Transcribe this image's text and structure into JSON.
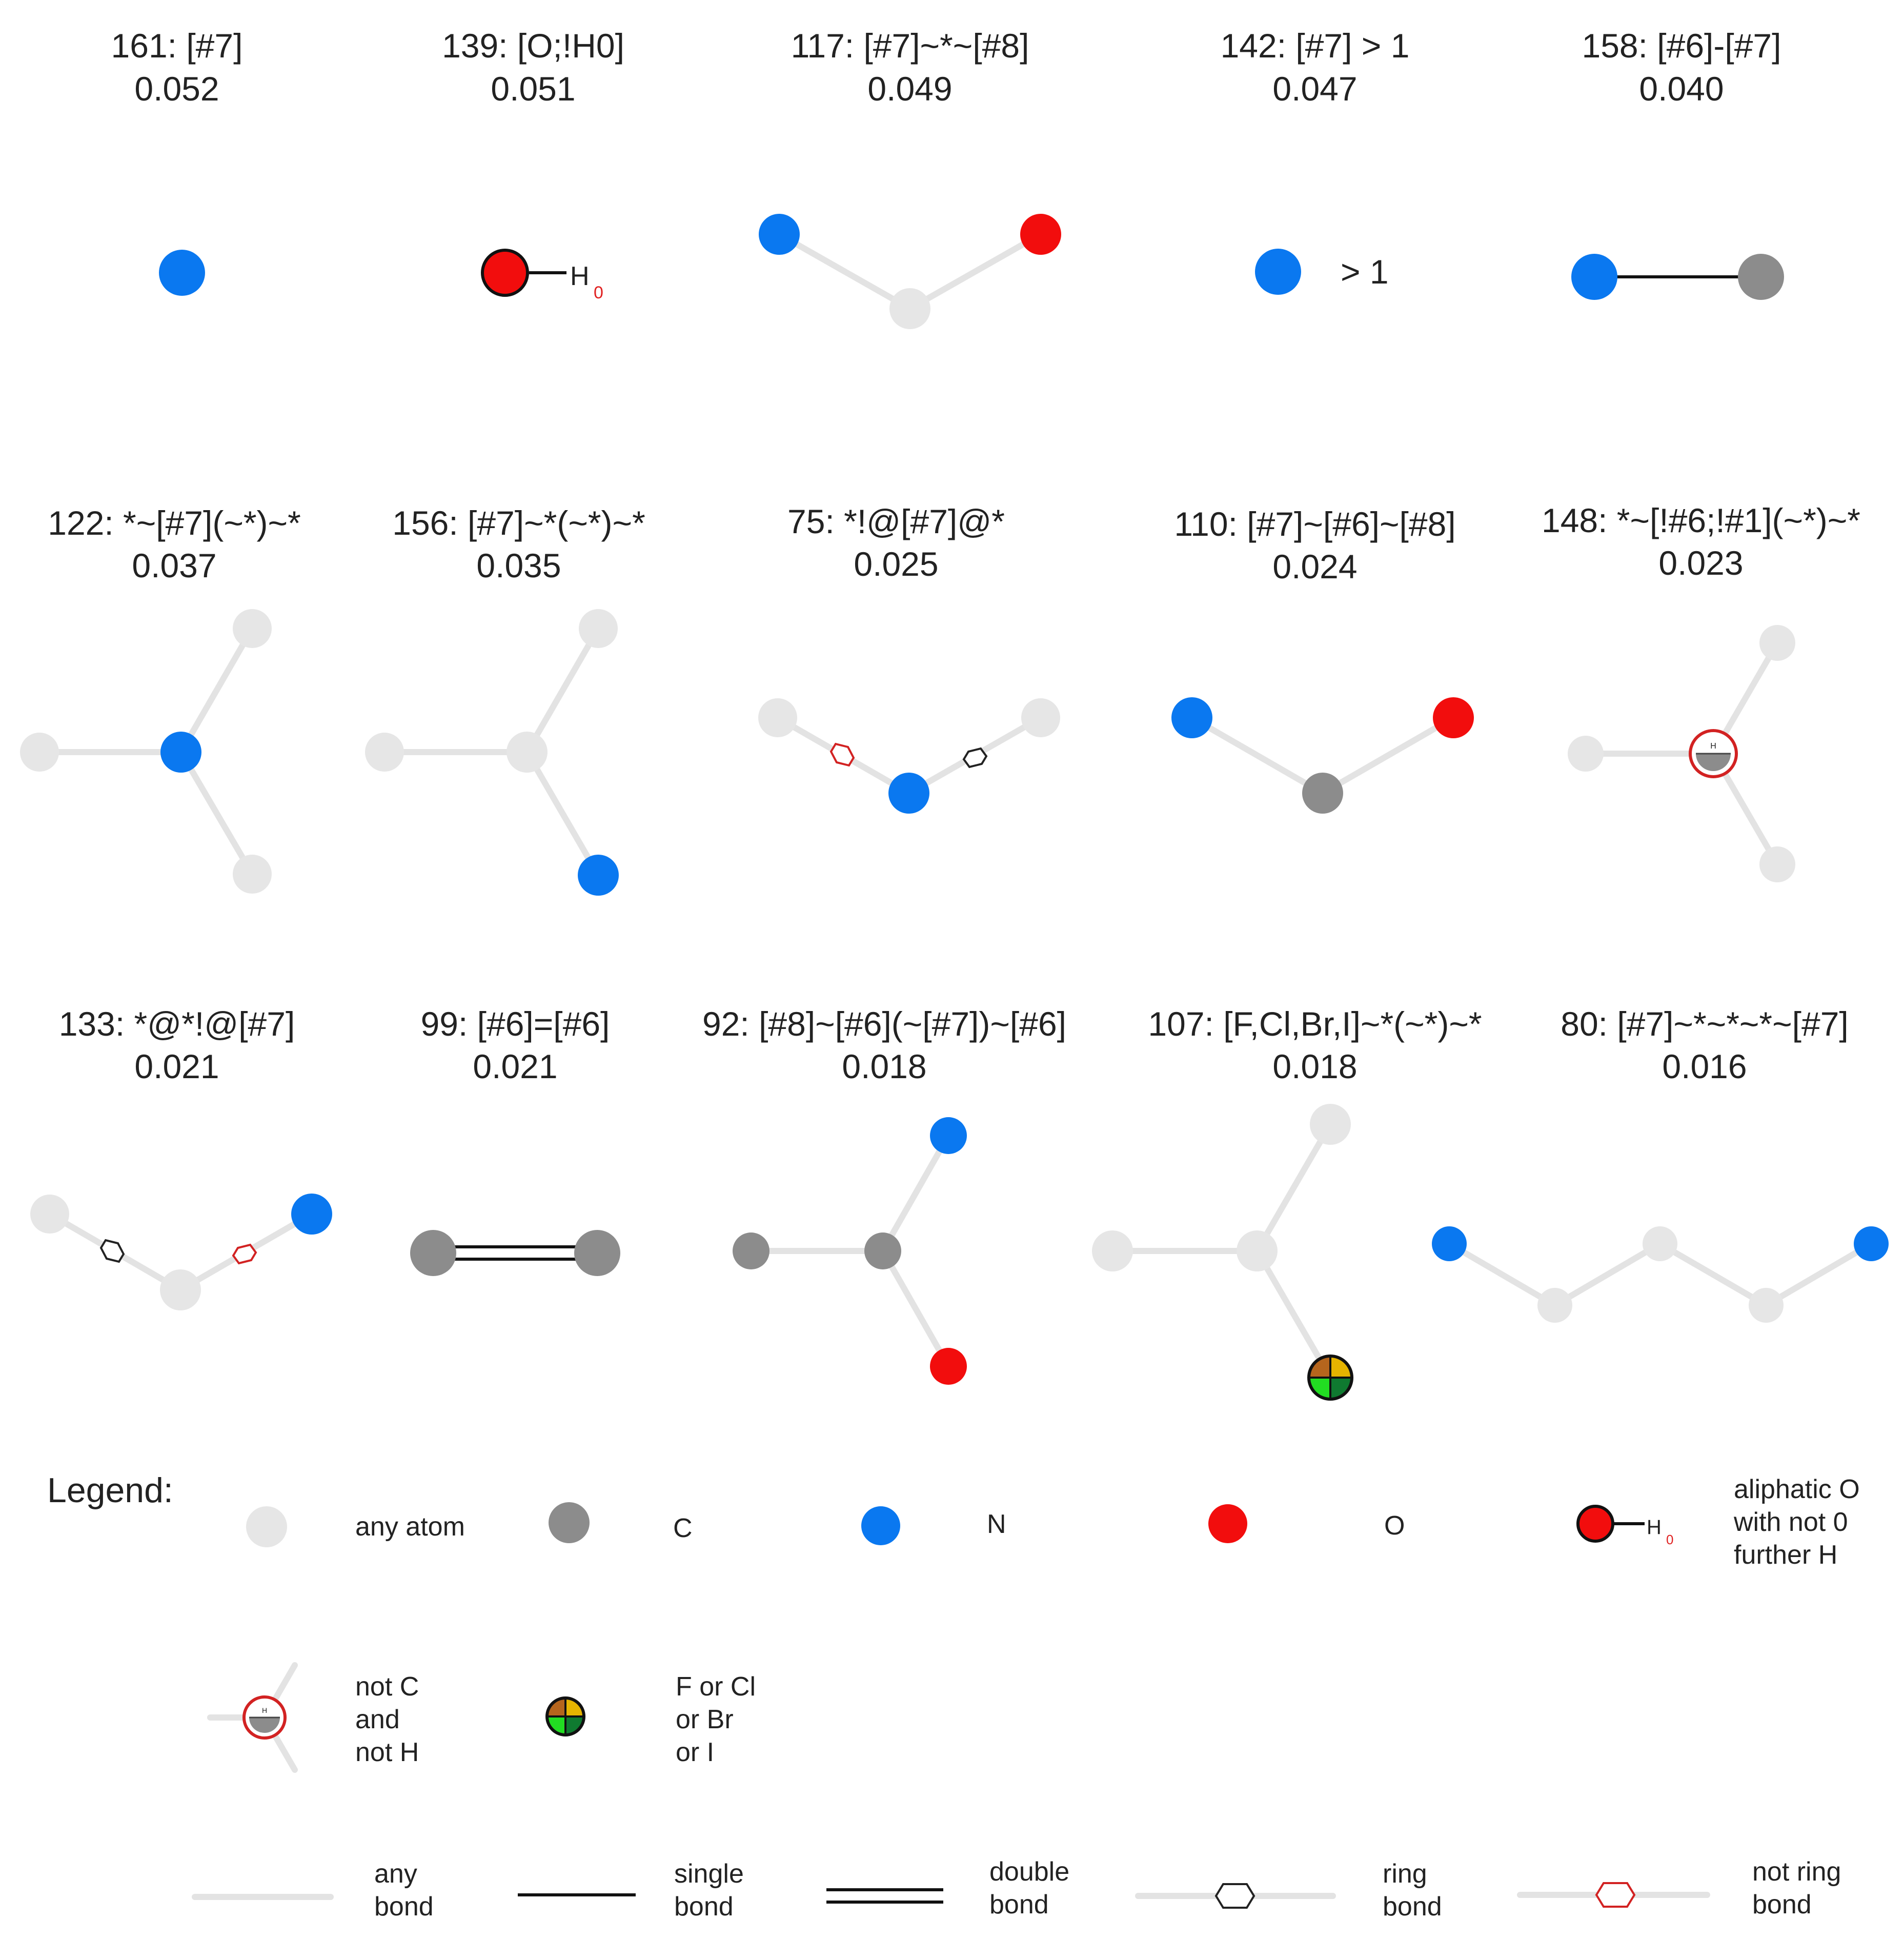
{
  "colors": {
    "any_atom": "#e6e6e6",
    "carbon": "#8c8c8c",
    "nitrogen": "#0a78f0",
    "oxygen": "#f20d0d",
    "bond_any": "#e3e3e3",
    "bond_single": "#111111",
    "ring_marker": "#222222",
    "not_ring_marker": "#d22222"
  },
  "panels": [
    {
      "title": "161: [#7]",
      "score": "0.052"
    },
    {
      "title": "139: [O;!H0]",
      "score": "0.051",
      "h_label": "H",
      "h_count": "0"
    },
    {
      "title": "117: [#7]~*~[#8]",
      "score": "0.049"
    },
    {
      "title": "142: [#7] > 1",
      "score": "0.047",
      "count_label": "> 1"
    },
    {
      "title": "158: [#6]-[#7]",
      "score": "0.040"
    },
    {
      "title": "122: *~[#7](~*)~*",
      "score": "0.037"
    },
    {
      "title": "156: [#7]~*(~*)~*",
      "score": "0.035"
    },
    {
      "title": "75: *!@[#7]@*",
      "score": "0.025"
    },
    {
      "title": "110: [#7]~[#6]~[#8]",
      "score": "0.024"
    },
    {
      "title": "148: *~[!#6;!#1](~*)~*",
      "score": "0.023"
    },
    {
      "title": "133: *@*!@[#7]",
      "score": "0.021"
    },
    {
      "title": "99: [#6]=[#6]",
      "score": "0.021"
    },
    {
      "title": "92: [#8]~[#6](~[#7])~[#6]",
      "score": "0.018"
    },
    {
      "title": "107: [F,Cl,Br,I]~*(~*)~*",
      "score": "0.018"
    },
    {
      "title": "80: [#7]~*~*~*~[#7]",
      "score": "0.016"
    }
  ],
  "legend": {
    "title": "Legend:",
    "atoms": {
      "any_atom": "any atom",
      "c": "C",
      "n": "N",
      "o": "O",
      "aliphatic_o": [
        "aliphatic O",
        "with not 0",
        "further H"
      ],
      "not_c_not_h": [
        "not C",
        "and",
        "not H"
      ],
      "halogen": [
        "F or Cl",
        "or Br",
        "or I"
      ]
    },
    "bonds": {
      "any": [
        "any",
        "bond"
      ],
      "single": [
        "single",
        "bond"
      ],
      "double": [
        "double",
        "bond"
      ],
      "ring": [
        "ring",
        "bond"
      ],
      "not_ring": [
        "not ring",
        "bond"
      ]
    }
  }
}
